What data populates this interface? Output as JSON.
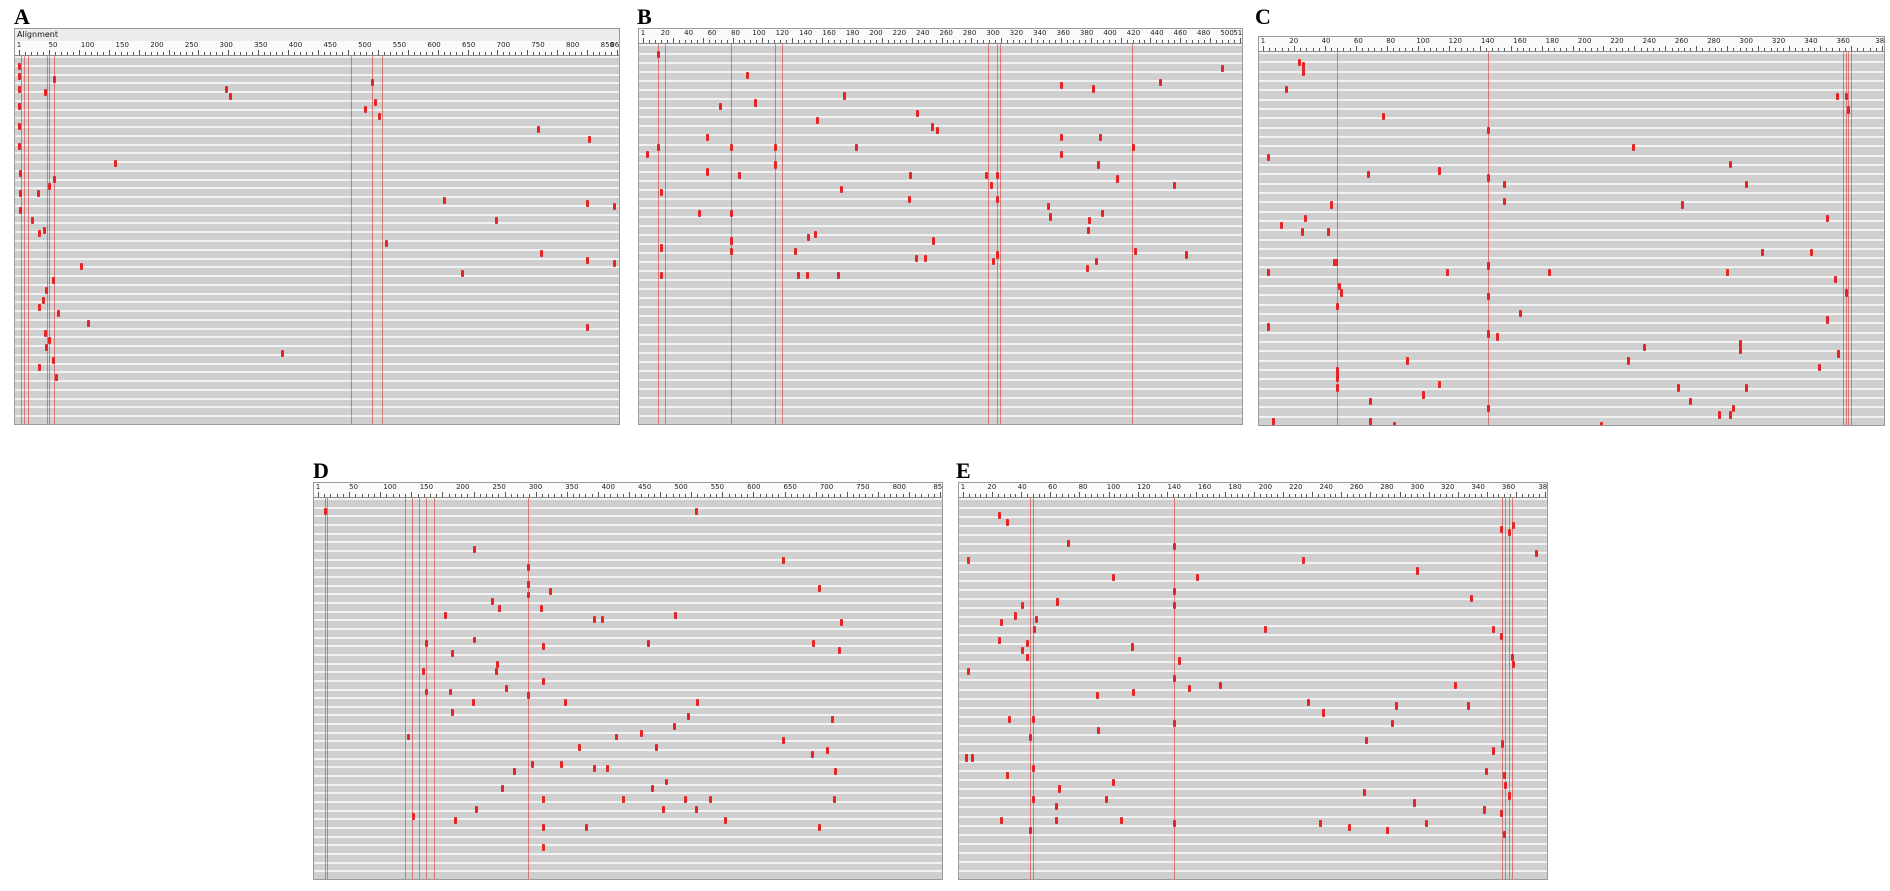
{
  "panels": [
    {
      "id": "A",
      "letter": "A",
      "title": "Alignment",
      "seqlen": 864,
      "ticks": [
        1,
        50,
        100,
        150,
        200,
        250,
        300,
        350,
        400,
        450,
        500,
        550,
        600,
        650,
        700,
        750,
        800,
        850,
        864
      ],
      "rows": 42,
      "columns": [
        4,
        8,
        14,
        42,
        45,
        52,
        480,
        510,
        525
      ],
      "marks": [
        [
          1,
          2
        ],
        [
          1,
          5
        ],
        [
          1,
          9
        ],
        [
          1,
          14
        ],
        [
          1,
          20
        ],
        [
          1,
          26
        ],
        [
          2,
          34
        ],
        [
          2,
          40
        ],
        [
          3,
          45
        ],
        [
          52,
          6
        ],
        [
          38,
          10
        ],
        [
          300,
          9
        ],
        [
          305,
          11
        ],
        [
          510,
          7
        ],
        [
          515,
          13
        ],
        [
          500,
          15
        ],
        [
          520,
          17
        ],
        [
          750,
          21
        ],
        [
          823,
          24
        ],
        [
          140,
          31
        ],
        [
          52,
          36
        ],
        [
          45,
          38
        ],
        [
          28,
          40
        ],
        [
          615,
          42
        ],
        [
          820,
          43
        ],
        [
          860,
          44
        ],
        [
          690,
          48
        ],
        [
          20,
          48
        ],
        [
          37,
          51
        ],
        [
          30,
          52
        ],
        [
          530,
          55
        ],
        [
          754,
          58
        ],
        [
          820,
          60
        ],
        [
          860,
          61
        ],
        [
          90,
          62
        ],
        [
          640,
          64
        ],
        [
          50,
          66
        ],
        [
          40,
          69
        ],
        [
          35,
          72
        ],
        [
          30,
          74
        ],
        [
          58,
          76
        ],
        [
          100,
          79
        ],
        [
          820,
          80
        ],
        [
          38,
          82
        ],
        [
          44,
          84
        ],
        [
          40,
          86
        ],
        [
          380,
          88
        ],
        [
          50,
          90
        ],
        [
          30,
          92
        ],
        [
          55,
          95
        ]
      ]
    },
    {
      "id": "B",
      "letter": "B",
      "seqlen": 511,
      "ticks": [
        1,
        20,
        40,
        60,
        80,
        100,
        120,
        140,
        160,
        180,
        200,
        220,
        240,
        260,
        280,
        300,
        320,
        340,
        360,
        380,
        400,
        420,
        440,
        460,
        480,
        500,
        511
      ],
      "rows": 42,
      "columns": [
        14,
        20,
        76,
        114,
        120,
        296,
        303,
        306,
        419
      ],
      "marks": [
        [
          14,
          2
        ],
        [
          496,
          6
        ],
        [
          90,
          8
        ],
        [
          443,
          10
        ],
        [
          358,
          11
        ],
        [
          385,
          12
        ],
        [
          173,
          14
        ],
        [
          97,
          16
        ],
        [
          67,
          17
        ],
        [
          235,
          19
        ],
        [
          150,
          21
        ],
        [
          248,
          23
        ],
        [
          252,
          24
        ],
        [
          56,
          26
        ],
        [
          358,
          26
        ],
        [
          391,
          26
        ],
        [
          14,
          29
        ],
        [
          76,
          29
        ],
        [
          114,
          29
        ],
        [
          183,
          29
        ],
        [
          420,
          29
        ],
        [
          4,
          31
        ],
        [
          358,
          31
        ],
        [
          114,
          34
        ],
        [
          390,
          34
        ],
        [
          56,
          36
        ],
        [
          83,
          37
        ],
        [
          229,
          37
        ],
        [
          294,
          37
        ],
        [
          303,
          37
        ],
        [
          298,
          40
        ],
        [
          406,
          38
        ],
        [
          455,
          40
        ],
        [
          170,
          41
        ],
        [
          16,
          42
        ],
        [
          303,
          44
        ],
        [
          228,
          44
        ],
        [
          347,
          46
        ],
        [
          49,
          48
        ],
        [
          76,
          48
        ],
        [
          393,
          48
        ],
        [
          349,
          49
        ],
        [
          382,
          50
        ],
        [
          381,
          53
        ],
        [
          148,
          54
        ],
        [
          142,
          55
        ],
        [
          249,
          56
        ],
        [
          76,
          56
        ],
        [
          16,
          58
        ],
        [
          76,
          59
        ],
        [
          131,
          59
        ],
        [
          421,
          59
        ],
        [
          465,
          60
        ],
        [
          234,
          61
        ],
        [
          242,
          61
        ],
        [
          303,
          60
        ],
        [
          300,
          62
        ],
        [
          388,
          62
        ],
        [
          380,
          64
        ],
        [
          168,
          66
        ],
        [
          16,
          66
        ],
        [
          141,
          66
        ],
        [
          133,
          66
        ]
      ]
    },
    {
      "id": "C",
      "letter": "C",
      "seqlen": 384,
      "ticks": [
        1,
        20,
        40,
        60,
        80,
        100,
        120,
        140,
        160,
        180,
        200,
        220,
        240,
        260,
        280,
        300,
        320,
        340,
        360,
        384
      ],
      "rows": 40,
      "columns": [
        47,
        140,
        360,
        362,
        363,
        365
      ],
      "marks": [
        [
          23,
          2
        ],
        [
          26,
          3
        ],
        [
          26,
          5
        ],
        [
          15,
          10
        ],
        [
          356,
          12
        ],
        [
          362,
          12
        ],
        [
          75,
          18
        ],
        [
          363,
          16
        ],
        [
          140,
          22
        ],
        [
          230,
          27
        ],
        [
          390,
          26
        ],
        [
          4,
          30
        ],
        [
          290,
          32
        ],
        [
          110,
          34
        ],
        [
          140,
          36
        ],
        [
          150,
          38
        ],
        [
          66,
          35
        ],
        [
          300,
          38
        ],
        [
          150,
          43
        ],
        [
          260,
          44
        ],
        [
          350,
          48
        ],
        [
          43,
          44
        ],
        [
          27,
          48
        ],
        [
          12,
          50
        ],
        [
          25,
          52
        ],
        [
          41,
          52
        ],
        [
          340,
          58
        ],
        [
          310,
          58
        ],
        [
          46,
          61
        ],
        [
          4,
          64
        ],
        [
          45,
          61
        ],
        [
          115,
          64
        ],
        [
          140,
          62
        ],
        [
          288,
          64
        ],
        [
          178,
          64
        ],
        [
          355,
          66
        ],
        [
          48,
          68
        ],
        [
          49,
          70
        ],
        [
          140,
          71
        ],
        [
          362,
          70
        ],
        [
          47,
          74
        ],
        [
          160,
          76
        ],
        [
          350,
          78
        ],
        [
          4,
          80
        ],
        [
          140,
          82
        ],
        [
          146,
          83
        ],
        [
          296,
          85
        ],
        [
          237,
          86
        ],
        [
          296,
          87
        ],
        [
          357,
          88
        ],
        [
          90,
          90
        ],
        [
          227,
          90
        ],
        [
          345,
          92
        ],
        [
          47,
          93
        ],
        [
          47,
          95
        ],
        [
          300,
          98
        ],
        [
          47,
          98
        ],
        [
          110,
          97
        ],
        [
          258,
          98
        ],
        [
          100,
          100
        ],
        [
          67,
          102
        ],
        [
          140,
          104
        ],
        [
          265,
          102
        ],
        [
          292,
          104
        ],
        [
          290,
          106
        ],
        [
          283,
          106
        ],
        [
          7,
          108
        ],
        [
          67,
          108
        ],
        [
          210,
          109
        ],
        [
          82,
          109
        ]
      ]
    },
    {
      "id": "D",
      "letter": "D",
      "seqlen": 856,
      "ticks": [
        1,
        50,
        100,
        150,
        200,
        250,
        300,
        350,
        400,
        450,
        500,
        550,
        600,
        650,
        700,
        750,
        800,
        856
      ],
      "rows": 44,
      "columns": [
        10,
        14,
        120,
        130,
        140,
        150,
        160,
        290
      ],
      "marks": [
        [
          10,
          3
        ],
        [
          520,
          3
        ],
        [
          215,
          14
        ],
        [
          640,
          17
        ],
        [
          290,
          19
        ],
        [
          290,
          24
        ],
        [
          320,
          26
        ],
        [
          290,
          27
        ],
        [
          240,
          29
        ],
        [
          308,
          31
        ],
        [
          690,
          25
        ],
        [
          175,
          33
        ],
        [
          250,
          31
        ],
        [
          380,
          34
        ],
        [
          392,
          34
        ],
        [
          492,
          33
        ],
        [
          720,
          35
        ],
        [
          216,
          40
        ],
        [
          150,
          41
        ],
        [
          455,
          41
        ],
        [
          310,
          42
        ],
        [
          682,
          41
        ],
        [
          717,
          43
        ],
        [
          185,
          44
        ],
        [
          247,
          47
        ],
        [
          145,
          49
        ],
        [
          246,
          49
        ],
        [
          310,
          52
        ],
        [
          260,
          54
        ],
        [
          150,
          55
        ],
        [
          182,
          55
        ],
        [
          290,
          56
        ],
        [
          214,
          58
        ],
        [
          340,
          58
        ],
        [
          522,
          58
        ],
        [
          185,
          61
        ],
        [
          510,
          62
        ],
        [
          490,
          65
        ],
        [
          708,
          63
        ],
        [
          445,
          67
        ],
        [
          125,
          68
        ],
        [
          410,
          68
        ],
        [
          640,
          69
        ],
        [
          360,
          71
        ],
        [
          465,
          71
        ],
        [
          680,
          73
        ],
        [
          700,
          72
        ],
        [
          295,
          76
        ],
        [
          335,
          76
        ],
        [
          380,
          77
        ],
        [
          398,
          77
        ],
        [
          712,
          78
        ],
        [
          270,
          78
        ],
        [
          254,
          83
        ],
        [
          460,
          83
        ],
        [
          480,
          81
        ],
        [
          310,
          86
        ],
        [
          420,
          86
        ],
        [
          505,
          86
        ],
        [
          540,
          86
        ],
        [
          710,
          86
        ],
        [
          520,
          89
        ],
        [
          218,
          89
        ],
        [
          475,
          89
        ],
        [
          132,
          91
        ],
        [
          190,
          92
        ],
        [
          310,
          94
        ],
        [
          370,
          94
        ],
        [
          560,
          92
        ],
        [
          690,
          94
        ],
        [
          310,
          100
        ]
      ]
    },
    {
      "id": "E",
      "letter": "E",
      "seqlen": 384,
      "ticks": [
        1,
        20,
        40,
        60,
        80,
        100,
        120,
        140,
        160,
        180,
        200,
        220,
        240,
        260,
        280,
        300,
        320,
        340,
        360,
        384
      ],
      "rows": 42,
      "columns": [
        45,
        47,
        140,
        356,
        358,
        360,
        362
      ],
      "marks": [
        [
          25,
          4
        ],
        [
          30,
          6
        ],
        [
          355,
          8
        ],
        [
          363,
          7
        ],
        [
          360,
          9
        ],
        [
          70,
          12
        ],
        [
          140,
          13
        ],
        [
          378,
          15
        ],
        [
          4,
          17
        ],
        [
          225,
          17
        ],
        [
          300,
          20
        ],
        [
          100,
          22
        ],
        [
          155,
          22
        ],
        [
          140,
          26
        ],
        [
          335,
          28
        ],
        [
          63,
          29
        ],
        [
          140,
          30
        ],
        [
          40,
          30
        ],
        [
          35,
          33
        ],
        [
          26,
          35
        ],
        [
          49,
          34
        ],
        [
          48,
          37
        ],
        [
          350,
          37
        ],
        [
          200,
          37
        ],
        [
          355,
          39
        ],
        [
          25,
          40
        ],
        [
          43,
          41
        ],
        [
          112,
          42
        ],
        [
          40,
          43
        ],
        [
          43,
          45
        ],
        [
          143,
          46
        ],
        [
          362,
          45
        ],
        [
          363,
          47
        ],
        [
          4,
          49
        ],
        [
          140,
          51
        ],
        [
          325,
          53
        ],
        [
          170,
          53
        ],
        [
          150,
          54
        ],
        [
          89,
          56
        ],
        [
          113,
          55
        ],
        [
          333,
          59
        ],
        [
          228,
          58
        ],
        [
          286,
          59
        ],
        [
          238,
          61
        ],
        [
          31,
          63
        ],
        [
          47,
          63
        ],
        [
          283,
          64
        ],
        [
          140,
          64
        ],
        [
          90,
          66
        ],
        [
          45,
          68
        ],
        [
          266,
          69
        ],
        [
          350,
          72
        ],
        [
          356,
          70
        ],
        [
          3,
          74
        ],
        [
          7,
          74
        ],
        [
          30,
          79
        ],
        [
          47,
          77
        ],
        [
          345,
          78
        ],
        [
          357,
          79
        ],
        [
          100,
          81
        ],
        [
          64,
          83
        ],
        [
          358,
          82
        ],
        [
          360,
          85
        ],
        [
          265,
          84
        ],
        [
          47,
          86
        ],
        [
          95,
          86
        ],
        [
          298,
          87
        ],
        [
          62,
          88
        ],
        [
          344,
          89
        ],
        [
          355,
          90
        ],
        [
          26,
          92
        ],
        [
          62,
          92
        ],
        [
          105,
          92
        ],
        [
          140,
          93
        ],
        [
          236,
          93
        ],
        [
          306,
          93
        ],
        [
          45,
          95
        ],
        [
          255,
          94
        ],
        [
          280,
          95
        ],
        [
          357,
          96
        ]
      ]
    }
  ]
}
